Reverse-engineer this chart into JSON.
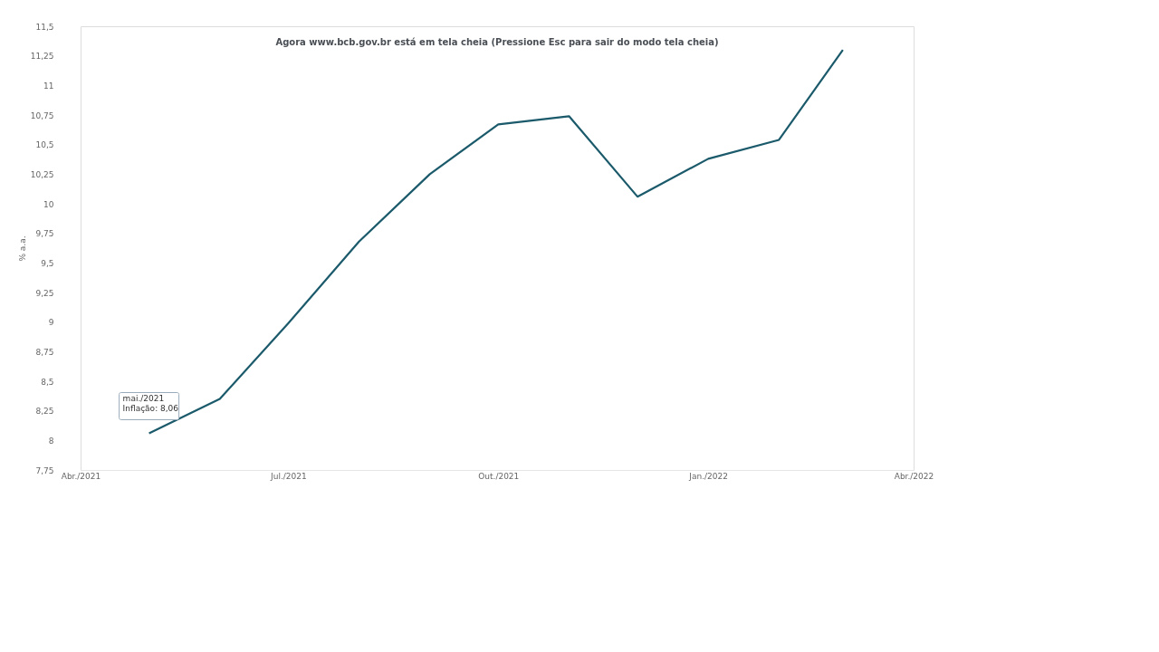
{
  "chart_data": {
    "type": "line",
    "ylabel": "% a.a.",
    "x": [
      "2021-05",
      "2021-06",
      "2021-07",
      "2021-08",
      "2021-09",
      "2021-10",
      "2021-11",
      "2021-12",
      "2022-01",
      "2022-02",
      "2022-03"
    ],
    "series": [
      {
        "color": "#1b5a6b",
        "values": [
          8.06,
          8.35,
          8.99,
          9.68,
          10.25,
          10.67,
          10.74,
          10.06,
          10.38,
          10.54,
          11.3
        ]
      }
    ],
    "xlim": [
      "2021-04",
      "2022-04"
    ],
    "xticks": [
      {
        "value": "2021-04",
        "label": "Abr./2021"
      },
      {
        "value": "2021-07",
        "label": "Jul./2021"
      },
      {
        "value": "2021-10",
        "label": "Out./2021"
      },
      {
        "value": "2022-01",
        "label": "Jan./2022"
      },
      {
        "value": "2022-04",
        "label": "Abr./2022"
      }
    ],
    "ylim": [
      7.75,
      11.5
    ],
    "yticks": [
      {
        "value": 7.75,
        "label": "7,75"
      },
      {
        "value": 8,
        "label": "8"
      },
      {
        "value": 8.25,
        "label": "8,25"
      },
      {
        "value": 8.5,
        "label": "8,5"
      },
      {
        "value": 8.75,
        "label": "8,75"
      },
      {
        "value": 9,
        "label": "9"
      },
      {
        "value": 9.25,
        "label": "9,25"
      },
      {
        "value": 9.5,
        "label": "9,5"
      },
      {
        "value": 9.75,
        "label": "9,75"
      },
      {
        "value": 10,
        "label": "10"
      },
      {
        "value": 10.25,
        "label": "10,25"
      },
      {
        "value": 10.5,
        "label": "10,5"
      },
      {
        "value": 10.75,
        "label": "10,75"
      },
      {
        "value": 11,
        "label": "11"
      },
      {
        "value": 11.25,
        "label": "11,25"
      },
      {
        "value": 11.5,
        "label": "11,5"
      }
    ],
    "grid": false,
    "marker": "none",
    "line_style": "solid",
    "annotations": [
      {
        "text": "mai./2021\nInflação: 8,06",
        "x": "2021-05",
        "y": 8.06
      },
      "Agora www.bcb.gov.br está em tela cheia (Pressione Esc para sair do modo tela cheia)"
    ]
  }
}
